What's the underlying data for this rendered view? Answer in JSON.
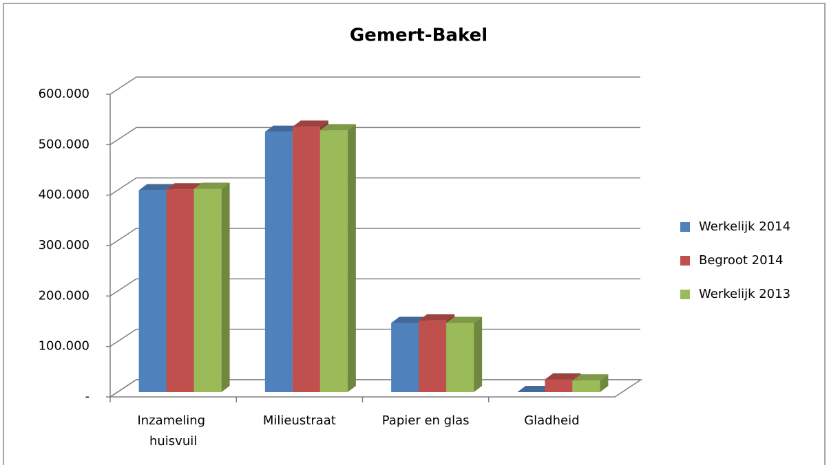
{
  "chart_data": {
    "type": "bar3d",
    "title": "Gemert-Bakel",
    "categories": [
      "Inzameling huisvuil",
      "Milieustraat",
      "Papier en glas",
      "Gladheid"
    ],
    "series": [
      {
        "name": "Werkelijk 2014",
        "color": "#4f81bd",
        "values": [
          400000,
          516000,
          137000,
          0
        ]
      },
      {
        "name": "Begroot 2014",
        "color": "#c0504d",
        "values": [
          402000,
          526000,
          142000,
          25000
        ]
      },
      {
        "name": "Werkelijk 2013",
        "color": "#9bbb59",
        "values": [
          403000,
          519000,
          137000,
          23000
        ]
      }
    ],
    "ylim": [
      0,
      600000
    ],
    "yticks": [
      {
        "value": 0,
        "label": "-"
      },
      {
        "value": 100000,
        "label": "100.000"
      },
      {
        "value": 200000,
        "label": "200.000"
      },
      {
        "value": 300000,
        "label": "300.000"
      },
      {
        "value": 400000,
        "label": "400.000"
      },
      {
        "value": 500000,
        "label": "500.000"
      },
      {
        "value": 600000,
        "label": "600.000"
      }
    ],
    "grid": true,
    "legend": "right"
  }
}
